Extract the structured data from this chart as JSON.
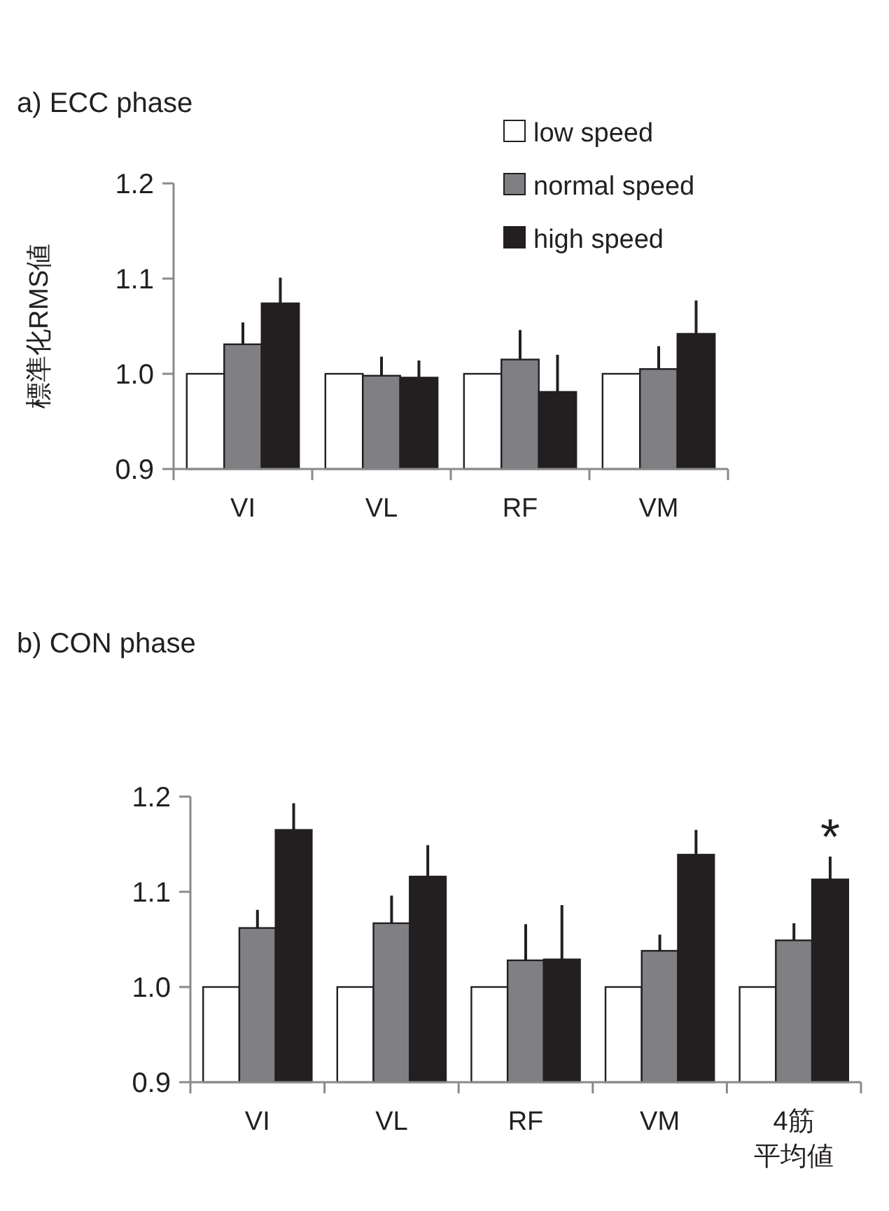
{
  "chart_data": [
    {
      "type": "bar",
      "title": "a) ECC phase",
      "ylabel": "標準化RMS値",
      "categories": [
        "VI",
        "VL",
        "RF",
        "VM"
      ],
      "ylim": [
        0.9,
        1.2
      ],
      "yticks": [
        {
          "value": 0.9,
          "label": "0.9"
        },
        {
          "value": 1.0,
          "label": "1.0"
        },
        {
          "value": 1.1,
          "label": "1.1"
        },
        {
          "value": 1.2,
          "label": "1.2"
        }
      ],
      "legend": "top right",
      "grid": false,
      "series": [
        {
          "name": "low speed",
          "color": "#ffffff",
          "values": [
            1.0,
            1.0,
            1.0,
            1.0
          ]
        },
        {
          "name": "normal speed",
          "color": "#808084",
          "values": [
            1.031,
            0.998,
            1.015,
            1.005
          ],
          "errors": [
            [
              1.031,
              1.054
            ],
            [
              0.998,
              1.018
            ],
            [
              1.015,
              1.046
            ],
            [
              1.005,
              1.029
            ]
          ]
        },
        {
          "name": "high speed",
          "color": "#231f20",
          "values": [
            1.074,
            0.996,
            0.981,
            1.042
          ],
          "errors": [
            [
              1.074,
              1.101
            ],
            [
              0.996,
              1.014
            ],
            [
              0.981,
              1.02
            ],
            [
              1.042,
              1.077
            ]
          ]
        }
      ]
    },
    {
      "type": "bar",
      "title": "b) CON phase",
      "categories": [
        "VI",
        "VL",
        "RF",
        "VM",
        "4筋平均値"
      ],
      "ylim": [
        0.9,
        1.2
      ],
      "yticks": [
        {
          "value": 0.9,
          "label": "0.9"
        },
        {
          "value": 1.0,
          "label": "1.0"
        },
        {
          "value": 1.1,
          "label": "1.1"
        },
        {
          "value": 1.2,
          "label": "1.2"
        }
      ],
      "grid": false,
      "annotations": [
        "*"
      ],
      "series": [
        {
          "color": "#ffffff",
          "values": [
            1.0,
            1.0,
            1.0,
            1.0,
            1.0
          ]
        },
        {
          "color": "#808084",
          "values": [
            1.062,
            1.067,
            1.028,
            1.038,
            1.049
          ],
          "errors": [
            [
              1.062,
              1.081
            ],
            [
              1.067,
              1.096
            ],
            [
              1.028,
              1.066
            ],
            [
              1.038,
              1.055
            ],
            [
              1.049,
              1.067
            ]
          ]
        },
        {
          "color": "#231f20",
          "values": [
            1.165,
            1.116,
            1.029,
            1.139,
            1.113
          ],
          "errors": [
            [
              1.165,
              1.193
            ],
            [
              1.116,
              1.149
            ],
            [
              1.029,
              1.086
            ],
            [
              1.139,
              1.165
            ],
            [
              1.113,
              1.137
            ]
          ]
        }
      ]
    }
  ]
}
